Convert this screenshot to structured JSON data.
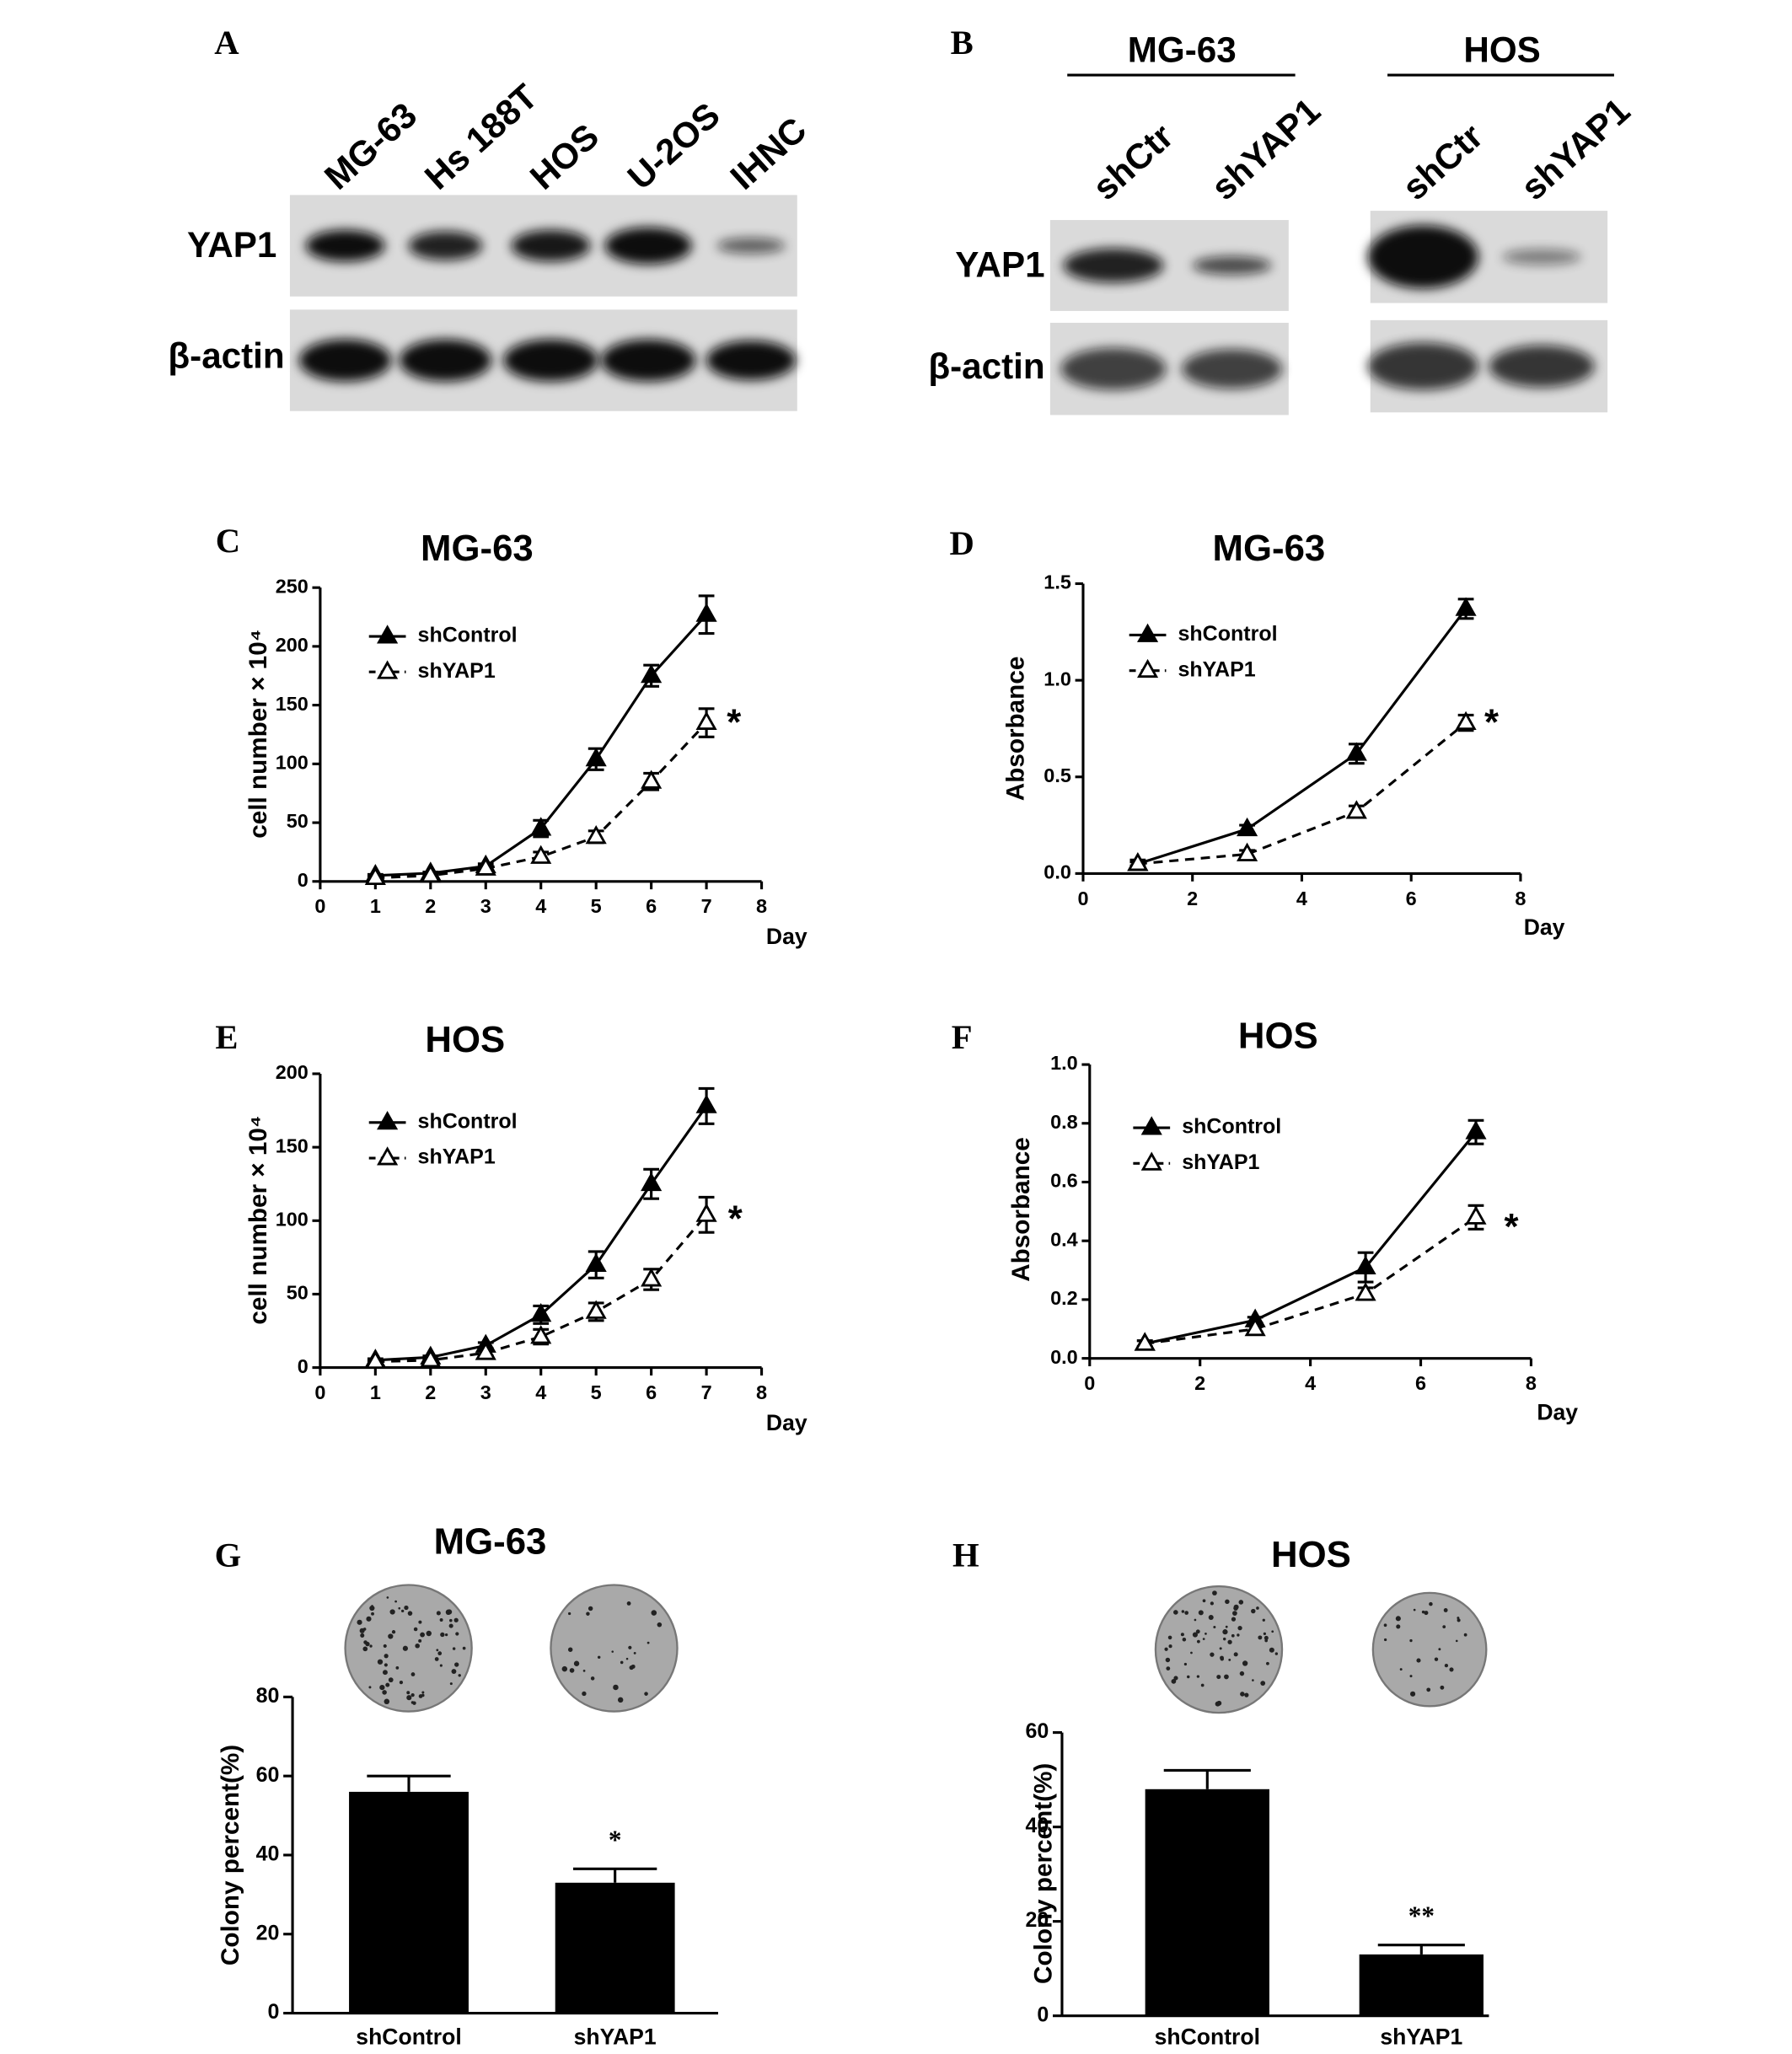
{
  "blots": [
    {
      "panel": "A",
      "lanes": [
        "MG-63",
        "Hs 188T",
        "HOS",
        "U-2OS",
        "IHNC"
      ],
      "rows": [
        "YAP1",
        "β-actin"
      ]
    },
    {
      "panel": "B",
      "groups": [
        "MG-63",
        "HOS"
      ],
      "lanes": [
        "shCtr",
        "shYAP1",
        "shCtr",
        "shYAP1"
      ],
      "rows": [
        "YAP1",
        "β-actin"
      ]
    }
  ],
  "chart_data": [
    {
      "type": "line",
      "panel": "C",
      "title": "MG-63",
      "x_label": "Day",
      "y_label": "cell number × 10⁴",
      "x": [
        1,
        2,
        3,
        4,
        5,
        6,
        7
      ],
      "series": [
        {
          "name": "shControl",
          "color": "#000000",
          "filled": true,
          "dashed": false,
          "values": [
            5,
            7,
            13,
            45,
            104,
            175,
            227
          ],
          "errors": [
            1,
            1,
            2,
            7,
            9,
            9,
            16
          ]
        },
        {
          "name": "shYAP1",
          "color": "#000000",
          "filled": false,
          "dashed": true,
          "values": [
            3,
            5,
            11,
            21,
            38,
            85,
            135
          ],
          "errors": [
            1,
            1,
            2,
            4,
            5,
            7,
            12
          ]
        }
      ],
      "xlim": [
        0,
        8
      ],
      "xticks": [
        0,
        1,
        2,
        3,
        4,
        5,
        6,
        7,
        8
      ],
      "ylim": [
        0,
        250
      ],
      "yticks": [
        0,
        50,
        100,
        150,
        200,
        250
      ],
      "annotation": "*"
    },
    {
      "type": "line",
      "panel": "D",
      "title": "MG-63",
      "x_label": "Day",
      "y_label": "Absorbance",
      "x": [
        1,
        3,
        5,
        7
      ],
      "series": [
        {
          "name": "shControl",
          "color": "#000000",
          "filled": true,
          "dashed": false,
          "values": [
            0.05,
            0.23,
            0.62,
            1.37
          ],
          "errors": [
            0.02,
            0.02,
            0.05,
            0.05
          ]
        },
        {
          "name": "shYAP1",
          "color": "#000000",
          "filled": false,
          "dashed": true,
          "values": [
            0.05,
            0.1,
            0.32,
            0.78
          ],
          "errors": [
            0.01,
            0.02,
            0.03,
            0.04
          ]
        }
      ],
      "xlim": [
        0,
        8
      ],
      "xticks": [
        0,
        2,
        4,
        6,
        8
      ],
      "ylim": [
        0,
        1.5
      ],
      "yticks": [
        {
          "value": 0,
          "label": "0.0"
        },
        0.5,
        {
          "value": 1,
          "label": "1.0"
        },
        {
          "value": 1.5,
          "label": "1.5"
        }
      ],
      "annotation": "*"
    },
    {
      "type": "line",
      "panel": "E",
      "title": "HOS",
      "x_label": "Day",
      "y_label": "cell number × 10⁴",
      "x": [
        1,
        2,
        3,
        4,
        5,
        6,
        7
      ],
      "series": [
        {
          "name": "shControl",
          "color": "#000000",
          "filled": true,
          "dashed": false,
          "values": [
            5,
            7,
            15,
            36,
            70,
            125,
            178
          ],
          "errors": [
            1,
            1,
            2,
            6,
            9,
            10,
            12
          ]
        },
        {
          "name": "shYAP1",
          "color": "#000000",
          "filled": false,
          "dashed": true,
          "values": [
            4,
            5,
            10,
            21,
            38,
            60,
            104
          ],
          "errors": [
            1,
            1,
            2,
            5,
            6,
            7,
            12
          ]
        }
      ],
      "xlim": [
        0,
        8
      ],
      "xticks": [
        0,
        1,
        2,
        3,
        4,
        5,
        6,
        7,
        8
      ],
      "ylim": [
        0,
        200
      ],
      "yticks": [
        0,
        50,
        100,
        150,
        200
      ],
      "annotation": "*"
    },
    {
      "type": "line",
      "panel": "F",
      "title": "HOS",
      "x_label": "Day",
      "y_label": "Absorbance",
      "x": [
        1,
        3,
        5,
        7
      ],
      "series": [
        {
          "name": "shControl",
          "color": "#000000",
          "filled": true,
          "dashed": false,
          "values": [
            0.05,
            0.13,
            0.31,
            0.77
          ],
          "errors": [
            0.01,
            0.01,
            0.05,
            0.04
          ]
        },
        {
          "name": "shYAP1",
          "color": "#000000",
          "filled": false,
          "dashed": true,
          "values": [
            0.05,
            0.1,
            0.22,
            0.48
          ],
          "errors": [
            0.01,
            0.01,
            0.02,
            0.04
          ]
        }
      ],
      "xlim": [
        0,
        8
      ],
      "xticks": [
        0,
        2,
        4,
        6,
        8
      ],
      "ylim": [
        0,
        1
      ],
      "yticks": [
        {
          "value": 0,
          "label": "0.0"
        },
        0.2,
        0.4,
        0.6,
        0.8,
        {
          "value": 1,
          "label": "1.0"
        }
      ],
      "annotation": "*"
    },
    {
      "type": "bar",
      "panel": "G",
      "title": "MG-63",
      "y_label": "Colony percent(%)",
      "categories": [
        "shControl",
        "shYAP1"
      ],
      "values": [
        56,
        33
      ],
      "errors": [
        4,
        3.5
      ],
      "color": "#000000",
      "ylim": [
        0,
        80
      ],
      "yticks": [
        0,
        20,
        40,
        60,
        80
      ],
      "annotation": "*"
    },
    {
      "type": "bar",
      "panel": "H",
      "title": "HOS",
      "y_label": "Colony percent(%)",
      "categories": [
        "shControl",
        "shYAP1"
      ],
      "values": [
        48,
        13
      ],
      "errors": [
        4,
        2
      ],
      "color": "#000000",
      "ylim": [
        0,
        60
      ],
      "yticks": [
        0,
        20,
        40,
        60
      ],
      "annotation": "**"
    }
  ]
}
